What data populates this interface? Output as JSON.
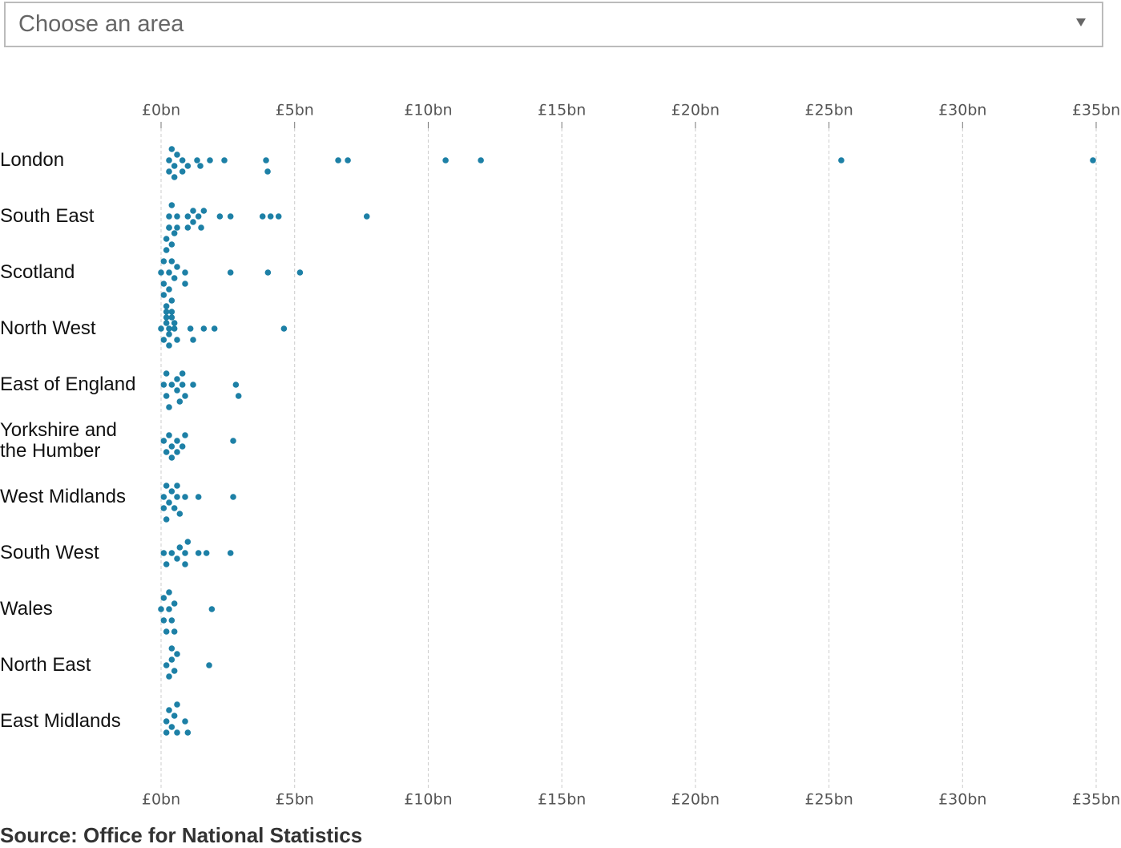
{
  "dropdown": {
    "placeholder": "Choose an area"
  },
  "chart_data": {
    "type": "beeswarm",
    "color": "#1d80a6",
    "grid": true,
    "xlim": [
      0,
      35
    ],
    "xticks": [
      {
        "value": 0,
        "label": "£0bn"
      },
      {
        "value": 5,
        "label": "£5bn"
      },
      {
        "value": 10,
        "label": "£10bn"
      },
      {
        "value": 15,
        "label": "£15bn"
      },
      {
        "value": 20,
        "label": "£20bn"
      },
      {
        "value": 25,
        "label": "£25bn"
      },
      {
        "value": 30,
        "label": "£30bn"
      },
      {
        "value": 35,
        "label": "£35bn"
      }
    ],
    "series": [
      {
        "name": "London",
        "values": [
          0.3,
          0.5,
          0.5,
          0.8,
          1.0,
          0.4,
          0.8,
          0.6,
          0.3,
          1.35,
          1.47,
          1.83,
          2.37,
          3.93,
          3.99,
          6.63,
          6.99,
          10.65,
          11.97,
          25.46,
          34.88
        ]
      },
      {
        "name": "South East",
        "values": [
          0.3,
          0.6,
          0.4,
          0.3,
          0.6,
          1.0,
          1.2,
          1.0,
          1.5,
          1.6,
          1.2,
          1.4,
          2.2,
          2.6,
          3.8,
          4.1,
          4.4,
          7.7
        ]
      },
      {
        "name": "Scotland",
        "values": [
          0.0,
          0.1,
          0.1,
          0.2,
          0.2,
          0.2,
          0.3,
          0.3,
          0.3,
          0.4,
          0.4,
          0.4,
          0.5,
          0.5,
          0.6,
          0.1,
          0.2,
          0.3,
          0.4,
          0.5,
          0.9,
          0.9,
          2.6,
          4.0,
          5.2
        ]
      },
      {
        "name": "North West",
        "values": [
          0.0,
          0.1,
          0.2,
          0.2,
          0.3,
          0.3,
          0.4,
          0.5,
          0.6,
          1.1,
          1.2,
          1.6,
          2.0,
          4.6
        ]
      },
      {
        "name": "East of England",
        "values": [
          0.1,
          0.2,
          0.2,
          0.3,
          0.4,
          0.6,
          0.6,
          0.7,
          0.8,
          0.8,
          0.9,
          1.2,
          2.8,
          2.9
        ]
      },
      {
        "name": "Yorkshire and the Humber",
        "values": [
          0.1,
          0.2,
          0.3,
          0.4,
          0.4,
          0.6,
          0.6,
          0.8,
          0.9,
          2.7
        ]
      },
      {
        "name": "West Midlands",
        "values": [
          0.1,
          0.1,
          0.2,
          0.2,
          0.3,
          0.4,
          0.5,
          0.6,
          0.6,
          0.7,
          0.9,
          1.4,
          2.7
        ]
      },
      {
        "name": "South West",
        "values": [
          0.1,
          0.2,
          0.4,
          0.6,
          0.7,
          0.9,
          0.9,
          1.0,
          1.4,
          1.7,
          2.6
        ]
      },
      {
        "name": "Wales",
        "values": [
          0.0,
          0.1,
          0.1,
          0.2,
          0.3,
          0.3,
          0.4,
          0.5,
          0.5,
          1.9
        ]
      },
      {
        "name": "North East",
        "values": [
          0.2,
          0.3,
          0.4,
          0.4,
          0.5,
          0.6,
          1.8
        ]
      },
      {
        "name": "East Midlands",
        "values": [
          0.2,
          0.2,
          0.3,
          0.4,
          0.5,
          0.6,
          0.6,
          0.9,
          1.0
        ]
      }
    ],
    "source": "Source: Office for National Statistics"
  }
}
